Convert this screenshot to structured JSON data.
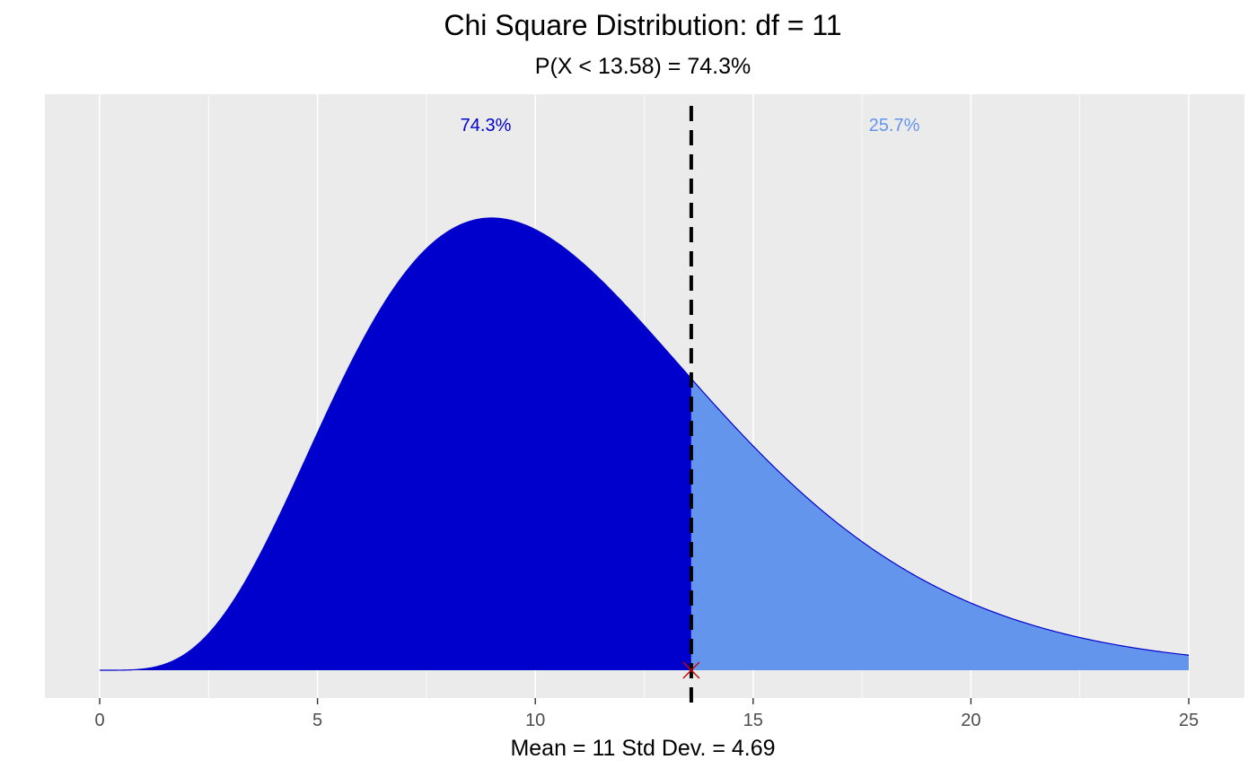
{
  "chart_data": {
    "type": "area",
    "title": "Chi Square Distribution: df = 11",
    "subtitle": "P(X < 13.58) = 74.3%",
    "xlabel": "Mean = 11  Std Dev. = 4.69",
    "ylabel": "",
    "df": 11,
    "critical_value": 13.58,
    "xlim": [
      0,
      25
    ],
    "x_ticks": [
      0,
      5,
      10,
      15,
      20,
      25
    ],
    "x_tick_labels": [
      "0",
      "5",
      "10",
      "15",
      "20",
      "25"
    ],
    "grid": true,
    "series": [
      {
        "region": "left",
        "x_range": [
          0,
          13.58
        ],
        "area_percent": "74.3%",
        "color": "#0000CD"
      },
      {
        "region": "right",
        "x_range": [
          13.58,
          25
        ],
        "area_percent": "25.7%",
        "color": "#6495ED"
      }
    ],
    "annotations": {
      "left_label": "74.3%",
      "right_label": "25.7%",
      "left_color": "#0000CD",
      "right_color": "#6495ED",
      "marker_color": "#CC0000",
      "vline_color": "#000000"
    },
    "panel_background": "#EBEBEB",
    "grid_color": "#FFFFFF"
  }
}
